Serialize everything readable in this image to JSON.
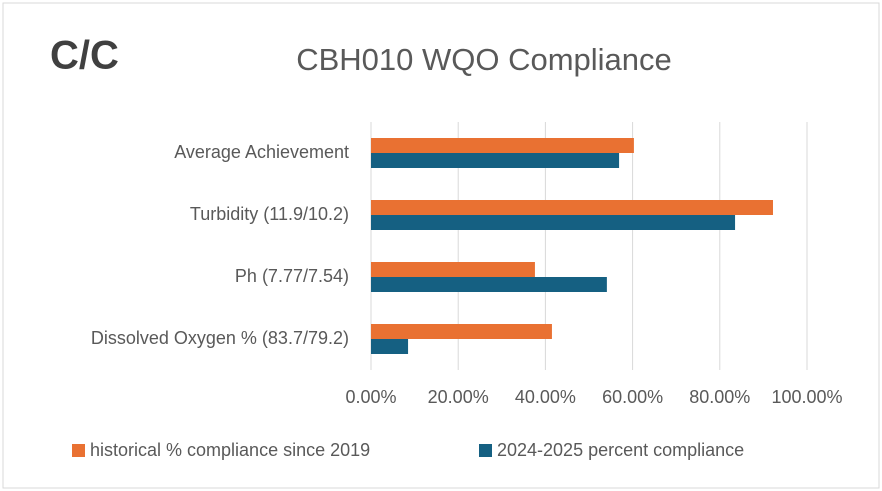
{
  "chart_data": {
    "type": "hbar",
    "title": "CBH010 WQO Compliance",
    "annotation": "C/C",
    "categories": [
      "Average Achievement",
      "Turbidity (11.9/10.2)",
      "Ph (7.77/7.54)",
      "Dissolved Oxygen % (83.7/79.2)"
    ],
    "series": [
      {
        "name": "historical % compliance since 2019",
        "color": "#e97132",
        "values": [
          60.3,
          92.2,
          37.6,
          41.5
        ]
      },
      {
        "name": "2024-2025 percent compliance",
        "color": "#156082",
        "values": [
          56.9,
          83.5,
          54.1,
          8.5
        ]
      }
    ],
    "xlim": [
      0,
      100
    ],
    "xticks": [
      {
        "value": 0,
        "label": "0.00%"
      },
      {
        "value": 20,
        "label": "20.00%"
      },
      {
        "value": 40,
        "label": "40.00%"
      },
      {
        "value": 60,
        "label": "60.00%"
      },
      {
        "value": 80,
        "label": "80.00%"
      },
      {
        "value": 100,
        "label": "100.00%"
      }
    ],
    "grid": true,
    "legend": "bottom"
  }
}
